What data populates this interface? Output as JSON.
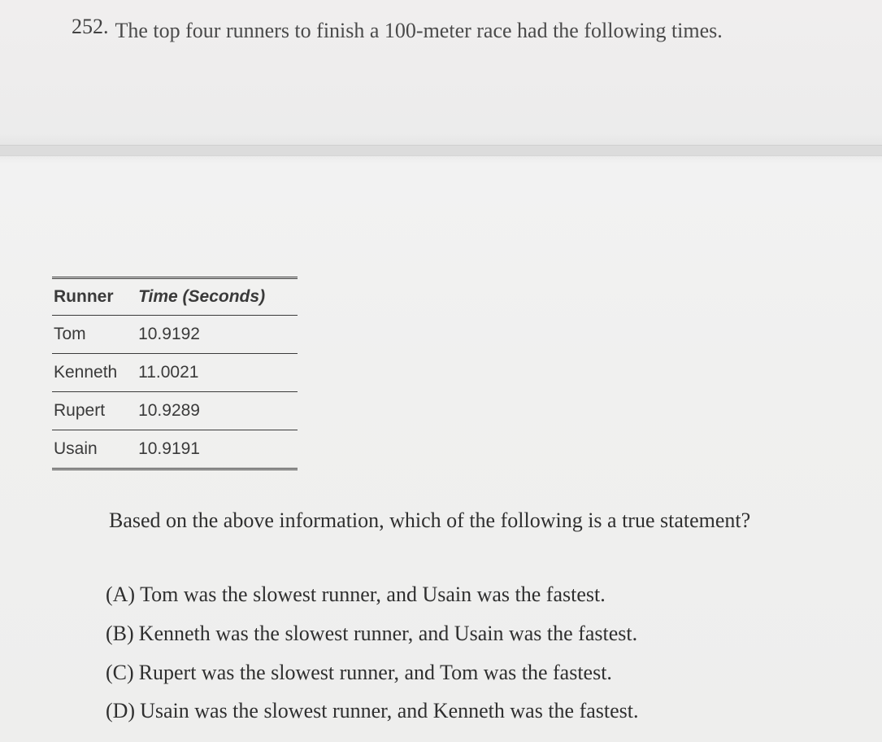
{
  "question": {
    "number": "252.",
    "text": "The top four runners to finish a 100-meter race had the following times."
  },
  "table": {
    "columns": [
      "Runner",
      "Time (Seconds)"
    ],
    "rows": [
      [
        "Tom",
        "10.9192"
      ],
      [
        "Kenneth",
        "11.0021"
      ],
      [
        "Rupert",
        "10.9289"
      ],
      [
        "Usain",
        "10.9191"
      ]
    ],
    "header_fontsize": 21,
    "cell_fontsize": 21,
    "border_color": "#3a3a3a",
    "font_family": "Arial"
  },
  "sub_question": "Based on the above information, which of the following is a true statement?",
  "choices": [
    {
      "label": "(A)",
      "text": "Tom was the slowest runner, and Usain was the fastest."
    },
    {
      "label": "(B)",
      "text": "Kenneth was the slowest runner, and Usain was the fastest."
    },
    {
      "label": "(C)",
      "text": "Rupert was the slowest runner, and Tom was the fastest."
    },
    {
      "label": "(D)",
      "text": "Usain was the slowest runner, and Kenneth was the fastest."
    }
  ],
  "styling": {
    "body_width": 1085,
    "body_height": 912,
    "background_gradient": [
      "#f0eeee",
      "#ececec",
      "#e4e4e4",
      "#f2f2f2",
      "#eeeeed"
    ],
    "text_color": "#3a3a3a",
    "question_fontsize": 26,
    "choice_fontsize": 26,
    "font_family": "Georgia"
  }
}
